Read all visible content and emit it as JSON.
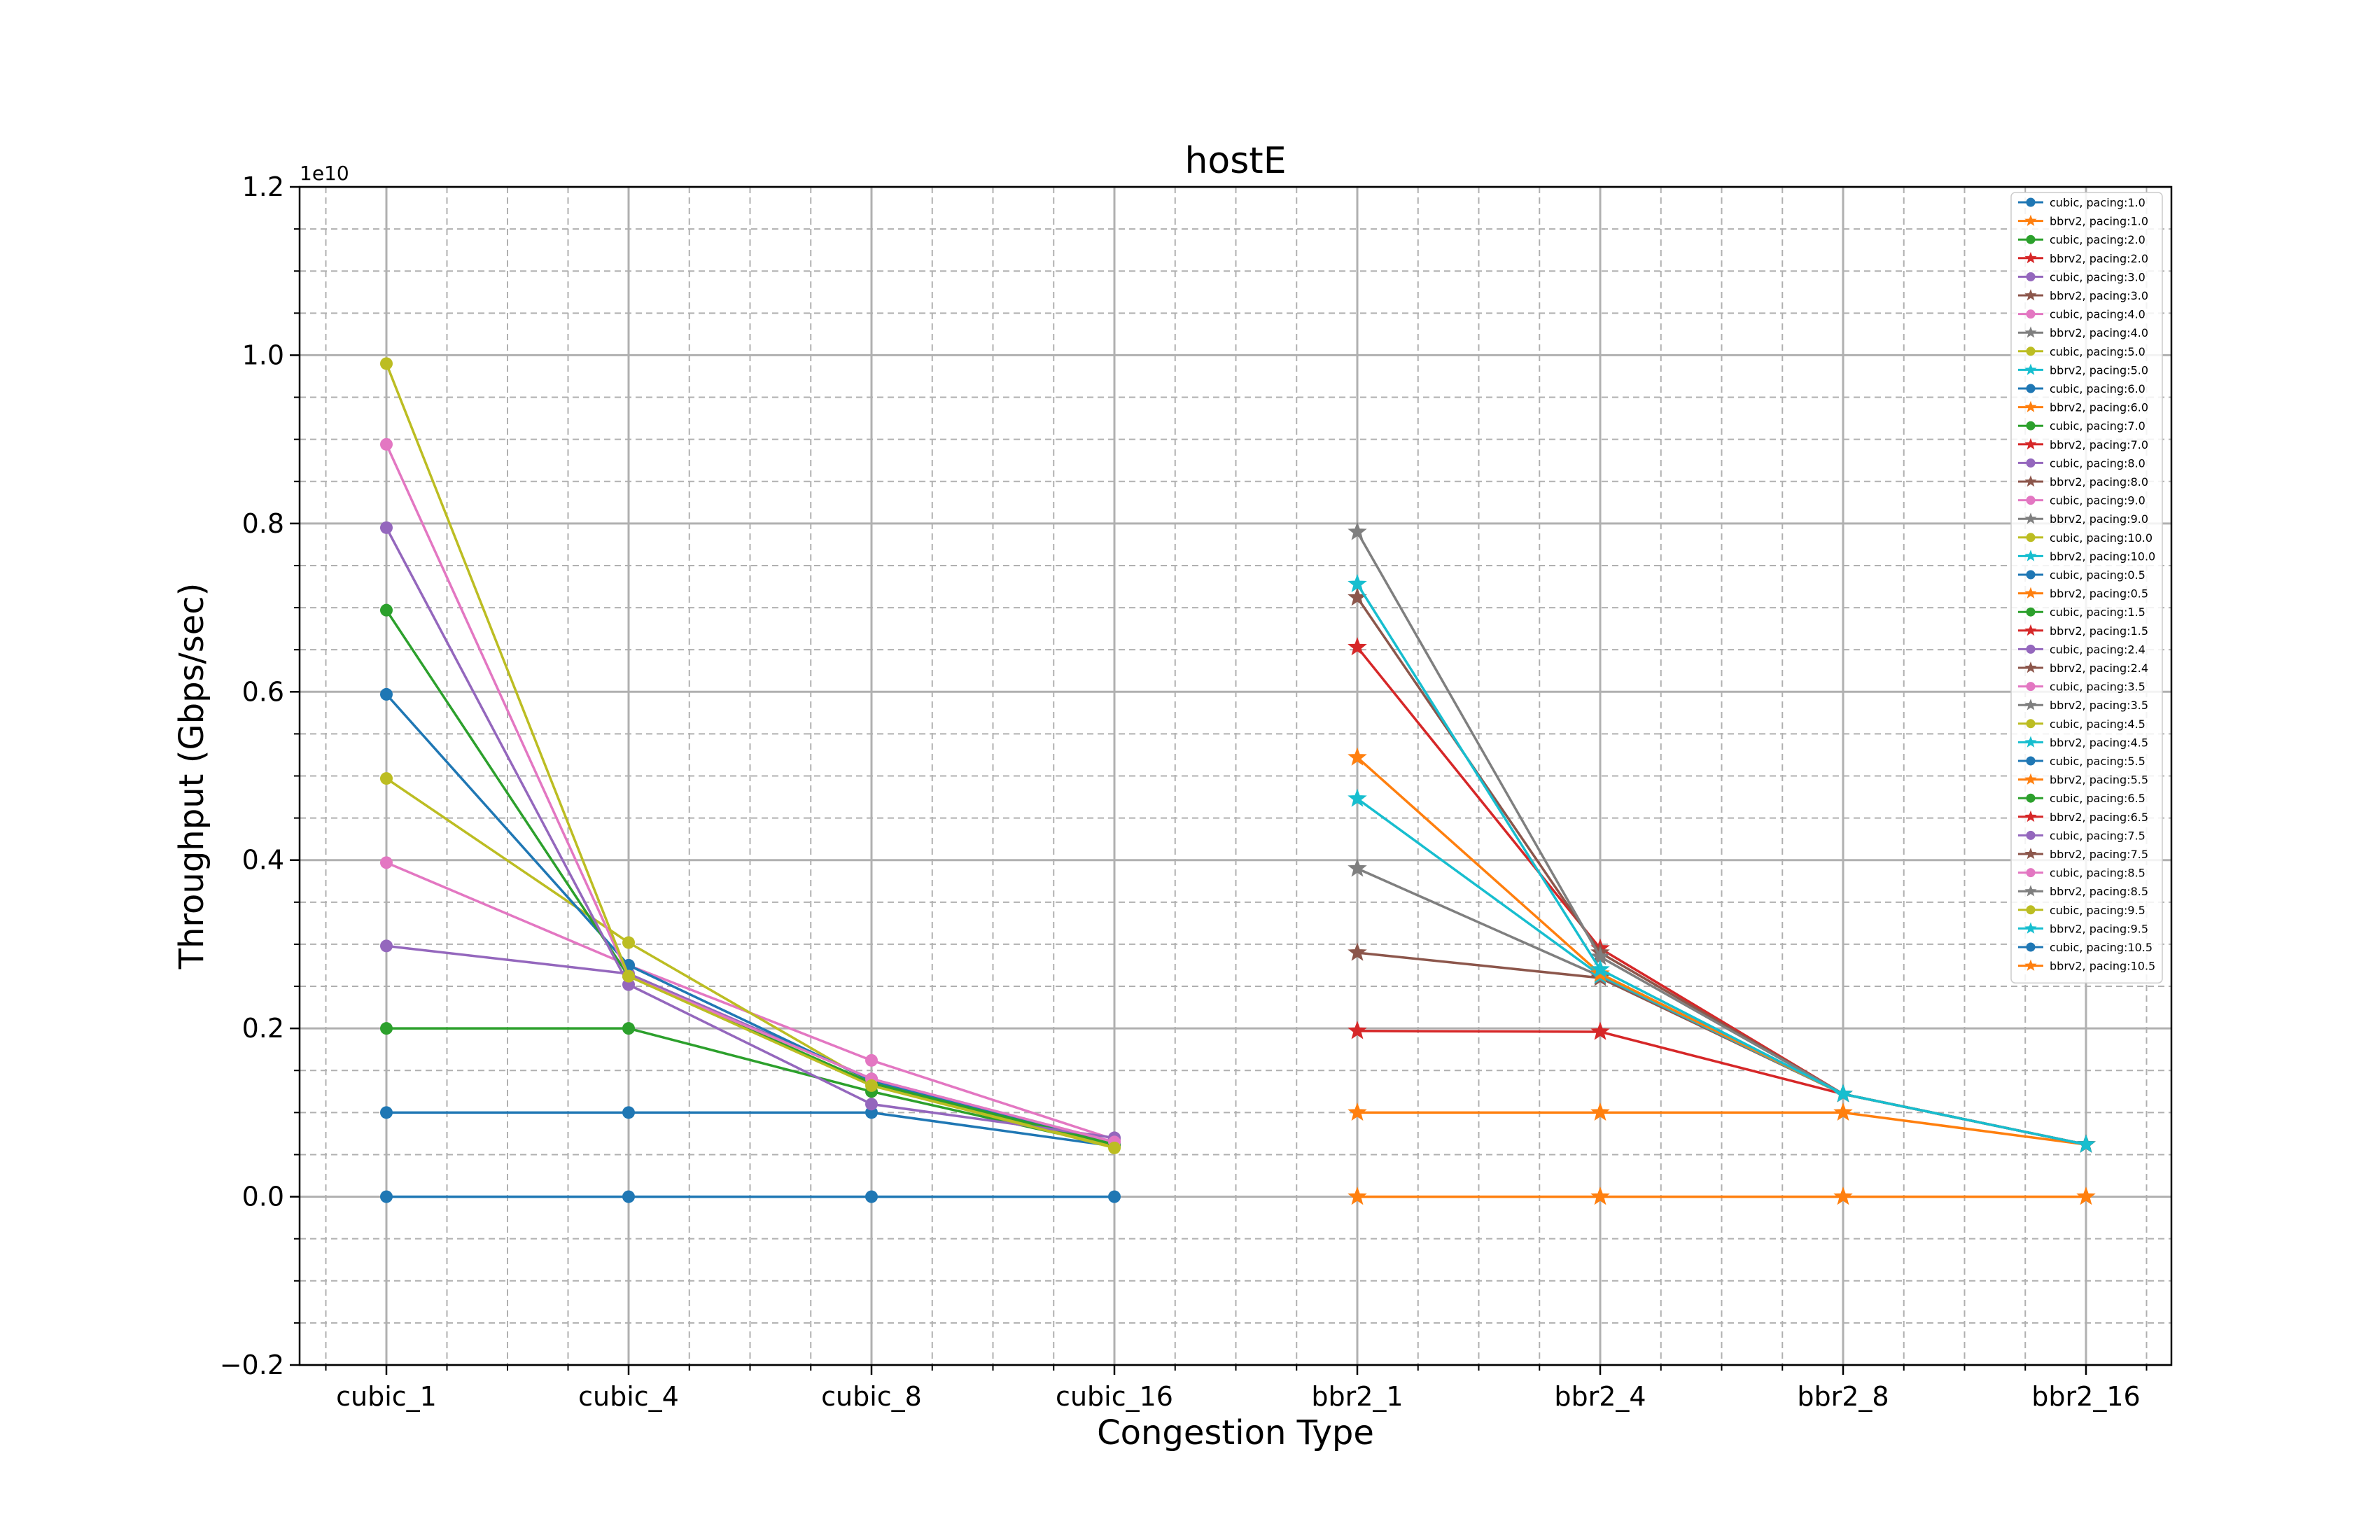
{
  "chart_data": {
    "type": "line",
    "title": "hostE",
    "xlabel": "Congestion Type",
    "ylabel": "Throughput (Gbps/sec)",
    "y_offset_label": "1e10",
    "categories": [
      "cubic_1",
      "cubic_4",
      "cubic_8",
      "cubic_16",
      "bbr2_1",
      "bbr2_4",
      "bbr2_8",
      "bbr2_16"
    ],
    "y_scale_factor": 10000000000,
    "ylim": [
      -0.2,
      1.2
    ],
    "yticks": [
      -0.2,
      0.0,
      0.2,
      0.4,
      0.6,
      0.8,
      1.0,
      1.2
    ],
    "ytick_labels": [
      "−0.2",
      "0.0",
      "0.2",
      "0.4",
      "0.6",
      "0.8",
      "1.0",
      "1.2"
    ],
    "grid": true,
    "legend_position": "top-right",
    "series": [
      {
        "name": "cubic, pacing:1.0",
        "marker": "circle",
        "color": "#1f77b4",
        "values": [
          0.1,
          0.1,
          0.1,
          0.06,
          null,
          null,
          null,
          null
        ]
      },
      {
        "name": "bbrv2, pacing:1.0",
        "marker": "star",
        "color": "#ff7f0e",
        "values": [
          null,
          null,
          null,
          null,
          0.1,
          0.1,
          0.1,
          0.062
        ]
      },
      {
        "name": "cubic, pacing:2.0",
        "marker": "circle",
        "color": "#2ca02c",
        "values": [
          0.2,
          0.2,
          0.125,
          0.06,
          null,
          null,
          null,
          null
        ]
      },
      {
        "name": "bbrv2, pacing:2.0",
        "marker": "star",
        "color": "#d62728",
        "values": [
          null,
          null,
          null,
          null,
          0.197,
          0.196,
          0.122,
          0.062
        ]
      },
      {
        "name": "cubic, pacing:3.0",
        "marker": "circle",
        "color": "#9467bd",
        "values": [
          0.298,
          0.265,
          0.14,
          0.065,
          null,
          null,
          null,
          null
        ]
      },
      {
        "name": "bbrv2, pacing:3.0",
        "marker": "star",
        "color": "#8c564b",
        "values": [
          null,
          null,
          null,
          null,
          0.29,
          0.26,
          0.122,
          0.062
        ]
      },
      {
        "name": "cubic, pacing:4.0",
        "marker": "circle",
        "color": "#e377c2",
        "values": [
          0.397,
          0.275,
          0.162,
          0.068,
          null,
          null,
          null,
          null
        ]
      },
      {
        "name": "bbrv2, pacing:4.0",
        "marker": "star",
        "color": "#7f7f7f",
        "values": [
          null,
          null,
          null,
          null,
          0.39,
          0.262,
          0.122,
          0.062
        ]
      },
      {
        "name": "cubic, pacing:5.0",
        "marker": "circle",
        "color": "#bcbd22",
        "values": [
          0.497,
          0.302,
          0.135,
          0.06,
          null,
          null,
          null,
          null
        ]
      },
      {
        "name": "bbrv2, pacing:5.0",
        "marker": "star",
        "color": "#17becf",
        "values": [
          null,
          null,
          null,
          null,
          0.473,
          0.263,
          0.122,
          0.062
        ]
      },
      {
        "name": "cubic, pacing:6.0",
        "marker": "circle",
        "color": "#1f77b4",
        "values": [
          0.597,
          0.275,
          0.138,
          0.062,
          null,
          null,
          null,
          null
        ]
      },
      {
        "name": "bbrv2, pacing:6.0",
        "marker": "star",
        "color": "#ff7f0e",
        "values": [
          null,
          null,
          null,
          null,
          0.522,
          0.265,
          0.122,
          0.062
        ]
      },
      {
        "name": "cubic, pacing:7.0",
        "marker": "circle",
        "color": "#2ca02c",
        "values": [
          0.697,
          0.262,
          0.135,
          0.062,
          null,
          null,
          null,
          null
        ]
      },
      {
        "name": "bbrv2, pacing:7.0",
        "marker": "star",
        "color": "#d62728",
        "values": [
          null,
          null,
          null,
          null,
          0.653,
          0.295,
          0.122,
          0.062
        ]
      },
      {
        "name": "cubic, pacing:8.0",
        "marker": "circle",
        "color": "#9467bd",
        "values": [
          0.795,
          0.252,
          0.11,
          0.07,
          null,
          null,
          null,
          null
        ]
      },
      {
        "name": "bbrv2, pacing:8.0",
        "marker": "star",
        "color": "#8c564b",
        "values": [
          null,
          null,
          null,
          null,
          0.712,
          0.29,
          0.122,
          0.062
        ]
      },
      {
        "name": "cubic, pacing:9.0",
        "marker": "circle",
        "color": "#e377c2",
        "values": [
          0.894,
          0.262,
          0.14,
          0.065,
          null,
          null,
          null,
          null
        ]
      },
      {
        "name": "bbrv2, pacing:9.0",
        "marker": "star",
        "color": "#7f7f7f",
        "values": [
          null,
          null,
          null,
          null,
          0.79,
          0.285,
          0.122,
          0.062
        ]
      },
      {
        "name": "cubic, pacing:10.0",
        "marker": "circle",
        "color": "#bcbd22",
        "values": [
          0.99,
          0.262,
          0.132,
          0.058,
          null,
          null,
          null,
          null
        ]
      },
      {
        "name": "bbrv2, pacing:10.0",
        "marker": "star",
        "color": "#17becf",
        "values": [
          null,
          null,
          null,
          null,
          0.728,
          0.27,
          0.122,
          0.062
        ]
      },
      {
        "name": "cubic, pacing:0.5",
        "marker": "circle",
        "color": "#1f77b4",
        "values": [
          0.0,
          0.0,
          0.0,
          0.0,
          null,
          null,
          null,
          null
        ]
      },
      {
        "name": "bbrv2, pacing:0.5",
        "marker": "star",
        "color": "#ff7f0e",
        "values": [
          null,
          null,
          null,
          null,
          0.0,
          0.0,
          0.0,
          0.0
        ]
      },
      {
        "name": "cubic, pacing:1.5",
        "marker": "circle",
        "color": "#2ca02c",
        "values": [
          null,
          null,
          null,
          null,
          null,
          null,
          null,
          null
        ]
      },
      {
        "name": "bbrv2, pacing:1.5",
        "marker": "star",
        "color": "#d62728",
        "values": [
          null,
          null,
          null,
          null,
          null,
          null,
          null,
          null
        ]
      },
      {
        "name": "cubic, pacing:2.4",
        "marker": "circle",
        "color": "#9467bd",
        "values": [
          null,
          null,
          null,
          null,
          null,
          null,
          null,
          null
        ]
      },
      {
        "name": "bbrv2, pacing:2.4",
        "marker": "star",
        "color": "#8c564b",
        "values": [
          null,
          null,
          null,
          null,
          null,
          null,
          null,
          null
        ]
      },
      {
        "name": "cubic, pacing:3.5",
        "marker": "circle",
        "color": "#e377c2",
        "values": [
          null,
          null,
          null,
          null,
          null,
          null,
          null,
          null
        ]
      },
      {
        "name": "bbrv2, pacing:3.5",
        "marker": "star",
        "color": "#7f7f7f",
        "values": [
          null,
          null,
          null,
          null,
          null,
          null,
          null,
          null
        ]
      },
      {
        "name": "cubic, pacing:4.5",
        "marker": "circle",
        "color": "#bcbd22",
        "values": [
          null,
          null,
          null,
          null,
          null,
          null,
          null,
          null
        ]
      },
      {
        "name": "bbrv2, pacing:4.5",
        "marker": "star",
        "color": "#17becf",
        "values": [
          null,
          null,
          null,
          null,
          null,
          null,
          null,
          null
        ]
      },
      {
        "name": "cubic, pacing:5.5",
        "marker": "circle",
        "color": "#1f77b4",
        "values": [
          null,
          null,
          null,
          null,
          null,
          null,
          null,
          null
        ]
      },
      {
        "name": "bbrv2, pacing:5.5",
        "marker": "star",
        "color": "#ff7f0e",
        "values": [
          null,
          null,
          null,
          null,
          null,
          null,
          null,
          null
        ]
      },
      {
        "name": "cubic, pacing:6.5",
        "marker": "circle",
        "color": "#2ca02c",
        "values": [
          null,
          null,
          null,
          null,
          null,
          null,
          null,
          null
        ]
      },
      {
        "name": "bbrv2, pacing:6.5",
        "marker": "star",
        "color": "#d62728",
        "values": [
          null,
          null,
          null,
          null,
          null,
          null,
          null,
          null
        ]
      },
      {
        "name": "cubic, pacing:7.5",
        "marker": "circle",
        "color": "#9467bd",
        "values": [
          null,
          null,
          null,
          null,
          null,
          null,
          null,
          null
        ]
      },
      {
        "name": "bbrv2, pacing:7.5",
        "marker": "star",
        "color": "#8c564b",
        "values": [
          null,
          null,
          null,
          null,
          null,
          null,
          null,
          null
        ]
      },
      {
        "name": "cubic, pacing:8.5",
        "marker": "circle",
        "color": "#e377c2",
        "values": [
          null,
          null,
          null,
          null,
          null,
          null,
          null,
          null
        ]
      },
      {
        "name": "bbrv2, pacing:8.5",
        "marker": "star",
        "color": "#7f7f7f",
        "values": [
          null,
          null,
          null,
          null,
          null,
          null,
          null,
          null
        ]
      },
      {
        "name": "cubic, pacing:9.5",
        "marker": "circle",
        "color": "#bcbd22",
        "values": [
          null,
          null,
          null,
          null,
          null,
          null,
          null,
          null
        ]
      },
      {
        "name": "bbrv2, pacing:9.5",
        "marker": "star",
        "color": "#17becf",
        "values": [
          null,
          null,
          null,
          null,
          null,
          null,
          null,
          null
        ]
      },
      {
        "name": "cubic, pacing:10.5",
        "marker": "circle",
        "color": "#1f77b4",
        "values": [
          null,
          null,
          null,
          null,
          null,
          null,
          null,
          null
        ]
      },
      {
        "name": "bbrv2, pacing:10.5",
        "marker": "star",
        "color": "#ff7f0e",
        "values": [
          null,
          null,
          null,
          null,
          null,
          null,
          null,
          null
        ]
      }
    ]
  }
}
